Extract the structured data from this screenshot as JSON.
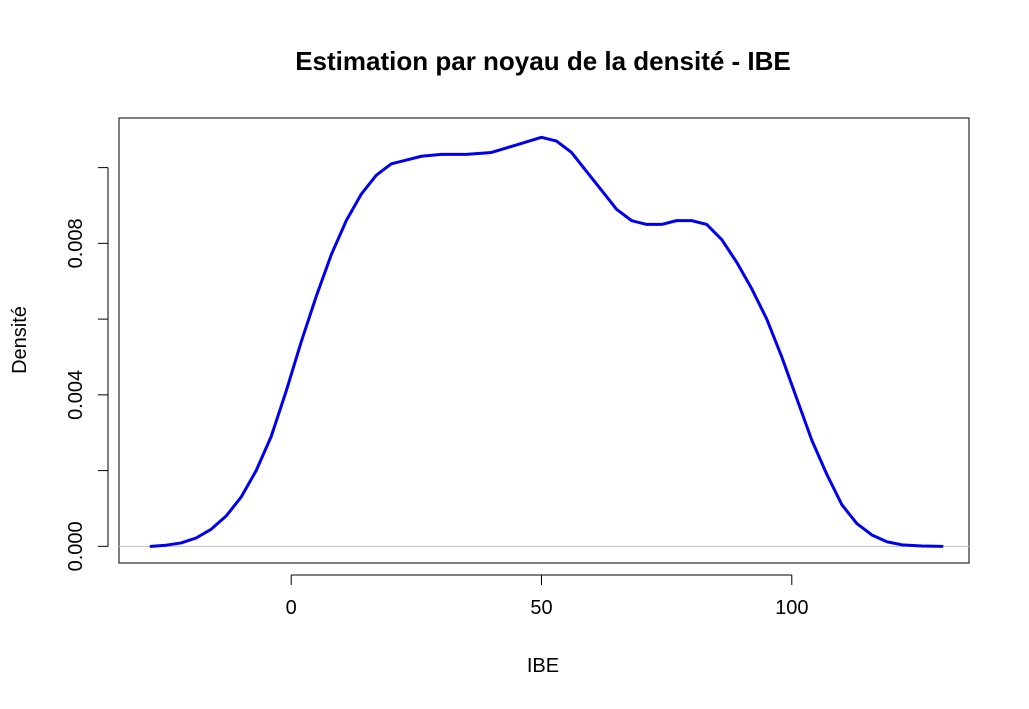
{
  "chart_data": {
    "type": "line",
    "title": "Estimation par noyau de la densité - IBE",
    "xlabel": "IBE",
    "ylabel": "Densité",
    "xlim": [
      -34.4,
      135.4
    ],
    "ylim": [
      -0.00044,
      0.01131
    ],
    "x_ticks": [
      0,
      50,
      100
    ],
    "x_tick_labels": [
      "0",
      "50",
      "100"
    ],
    "y_ticks": [
      0,
      0.002,
      0.004,
      0.006,
      0.008,
      0.01
    ],
    "y_tick_labels": [
      "0.000",
      "",
      "0.004",
      "",
      "0.008",
      ""
    ],
    "grid": false,
    "legend": "none",
    "reference_line": {
      "y": 0,
      "color": "#bebebe"
    },
    "series": [
      {
        "color": "#0000ee",
        "x": [
          -28,
          -25,
          -22,
          -19,
          -16,
          -13,
          -10,
          -7,
          -4,
          -1,
          2,
          5,
          8,
          11,
          14,
          17,
          20,
          23,
          26,
          30,
          35,
          40,
          45,
          50,
          53,
          56,
          59,
          62,
          65,
          68,
          71,
          74,
          77,
          80,
          83,
          86,
          89,
          92,
          95,
          98,
          101,
          104,
          107,
          110,
          113,
          116,
          119,
          122,
          126,
          130
        ],
        "y": [
          0.0,
          3e-05,
          9e-05,
          0.00022,
          0.00045,
          0.0008,
          0.0013,
          0.002,
          0.0029,
          0.0041,
          0.0054,
          0.0066,
          0.0077,
          0.0086,
          0.0093,
          0.0098,
          0.0101,
          0.0102,
          0.0103,
          0.01035,
          0.01035,
          0.0104,
          0.0106,
          0.0108,
          0.0107,
          0.0104,
          0.0099,
          0.0094,
          0.0089,
          0.0086,
          0.0085,
          0.0085,
          0.0086,
          0.0086,
          0.0085,
          0.0081,
          0.0075,
          0.0068,
          0.006,
          0.005,
          0.0039,
          0.0028,
          0.0019,
          0.0011,
          0.0006,
          0.0003,
          0.00012,
          4e-05,
          1e-05,
          0.0
        ]
      }
    ]
  }
}
